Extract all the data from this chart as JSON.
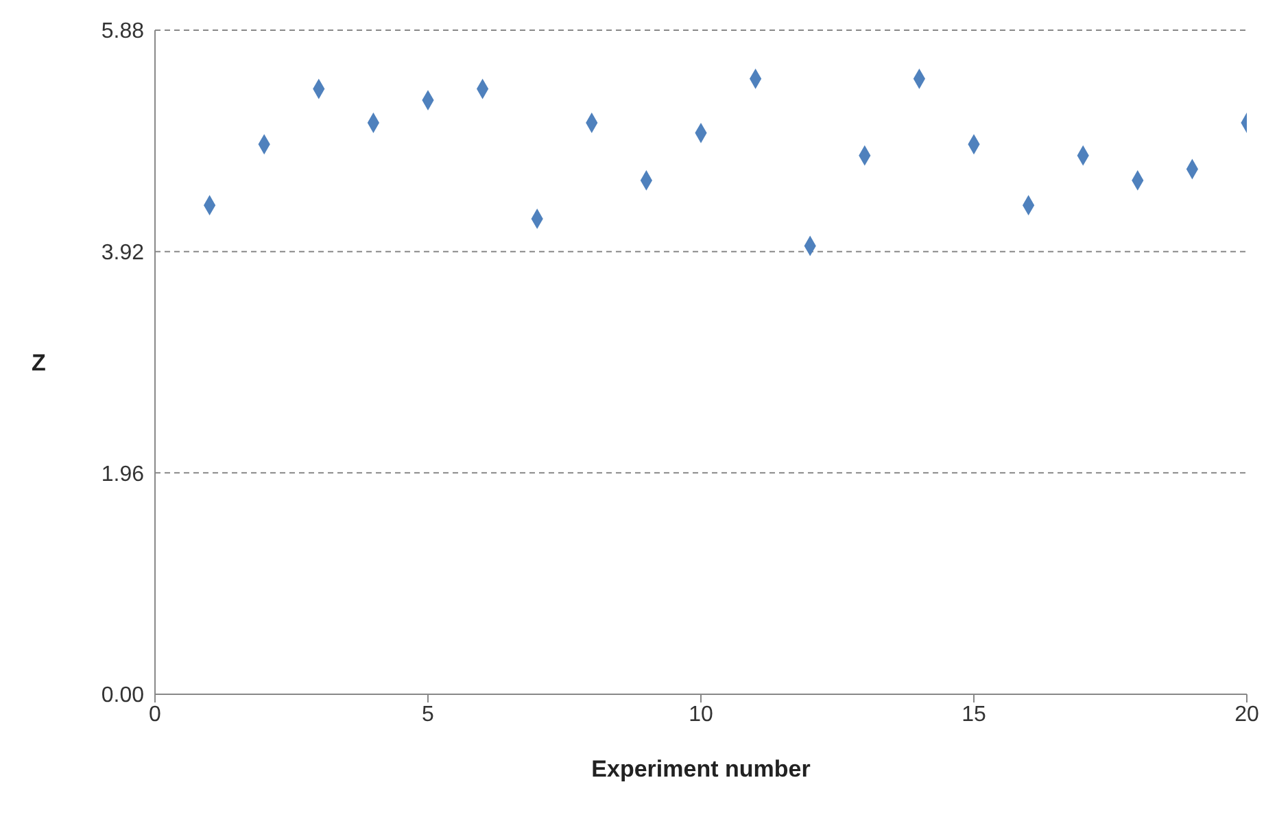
{
  "chart_data": {
    "type": "scatter",
    "xlabel": "Experiment number",
    "ylabel": "Z",
    "x": [
      1,
      2,
      3,
      4,
      5,
      6,
      7,
      8,
      9,
      10,
      11,
      12,
      13,
      14,
      15,
      16,
      17,
      18,
      19,
      20
    ],
    "series": [
      {
        "color": "#4f81bd",
        "values": [
          4.33,
          4.87,
          5.36,
          5.06,
          5.26,
          5.36,
          4.21,
          5.06,
          4.55,
          4.97,
          5.45,
          3.97,
          4.77,
          5.45,
          4.87,
          4.33,
          4.77,
          4.55,
          4.65,
          5.06
        ]
      }
    ],
    "xlim": [
      0,
      20
    ],
    "xticks": [
      0,
      5,
      10,
      15,
      20
    ],
    "ylim": [
      0,
      5.88
    ],
    "yticks": [
      {
        "value": 0,
        "label": "0.00"
      },
      1.96,
      3.92,
      5.88
    ],
    "grid": "y",
    "legend": false,
    "marker": "diamond"
  }
}
